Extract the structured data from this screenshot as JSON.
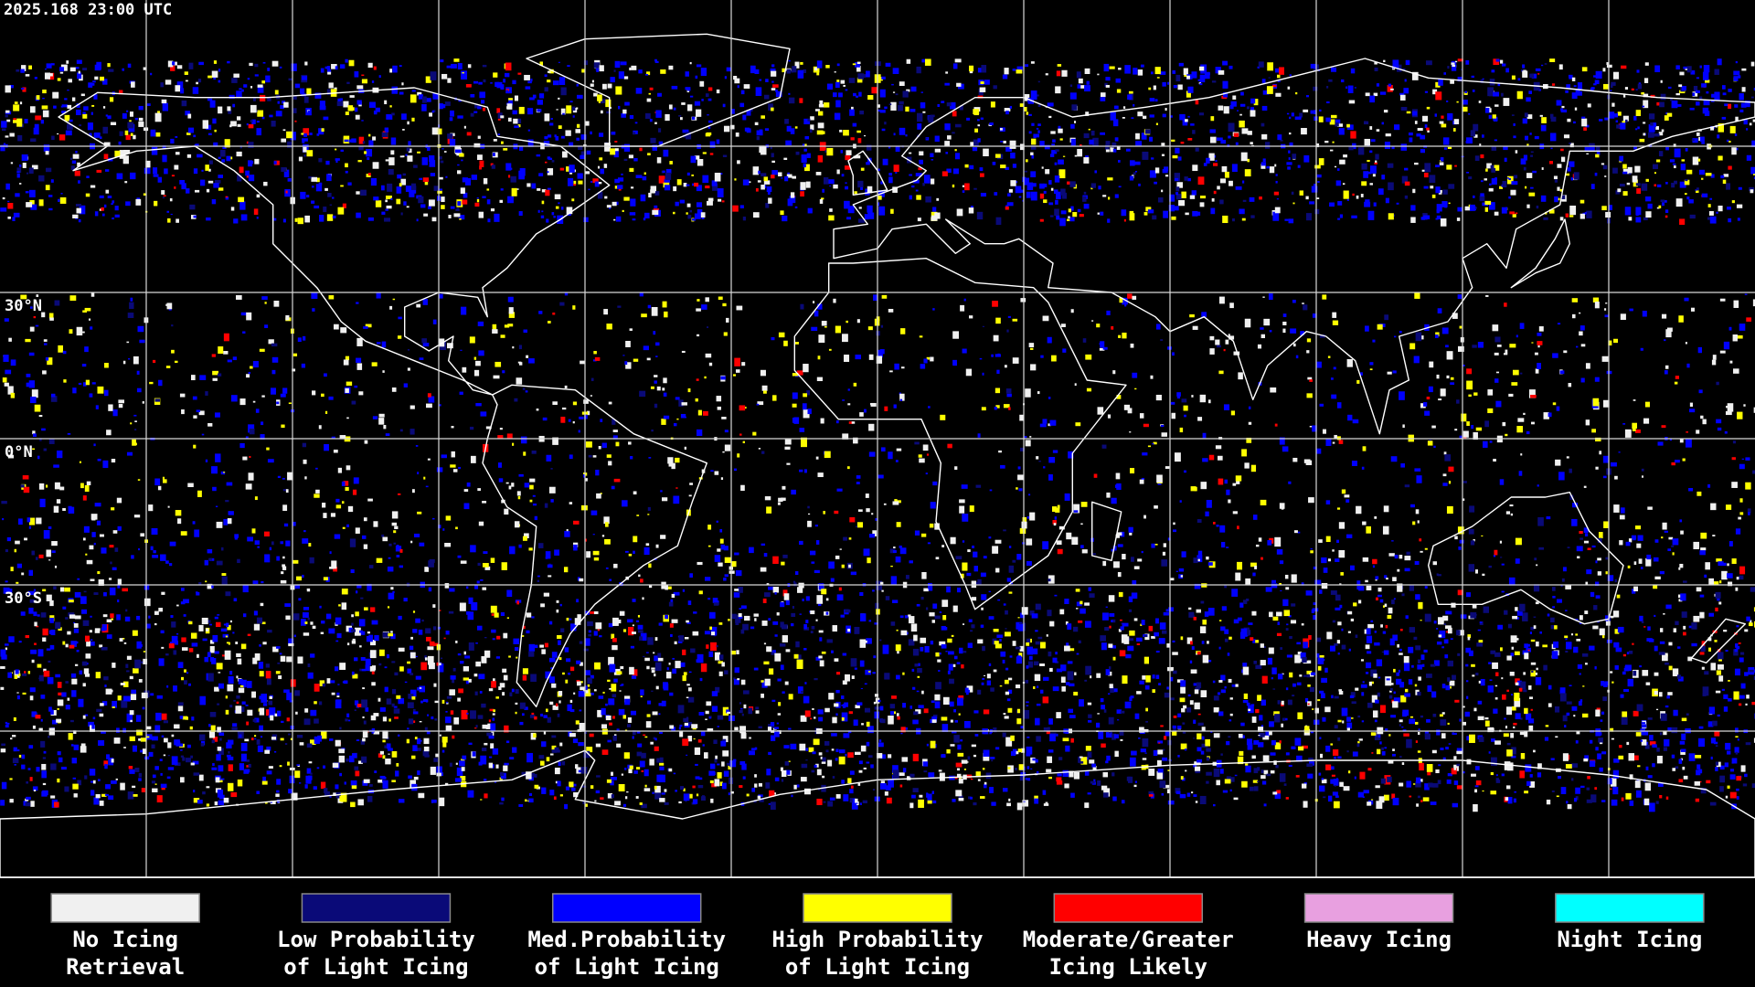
{
  "timestamp": "2025.168 23:00 UTC",
  "latitude_labels": [
    "30°N",
    "0°N",
    "30°S"
  ],
  "legend": {
    "items": [
      {
        "color": "#f0f0f0",
        "lines": [
          "No Icing",
          "Retrieval"
        ]
      },
      {
        "color": "#0a0a78",
        "lines": [
          "Low Probability",
          "of Light Icing"
        ]
      },
      {
        "color": "#0000ff",
        "lines": [
          "Med.Probability",
          "of Light Icing"
        ]
      },
      {
        "color": "#ffff00",
        "lines": [
          "High Probability",
          "of Light Icing"
        ]
      },
      {
        "color": "#ff0000",
        "lines": [
          "Moderate/Greater",
          "Icing Likely"
        ]
      },
      {
        "color": "#e8a0e0",
        "lines": [
          "Heavy Icing"
        ]
      },
      {
        "color": "#00ffff",
        "lines": [
          "Night Icing"
        ]
      }
    ]
  }
}
